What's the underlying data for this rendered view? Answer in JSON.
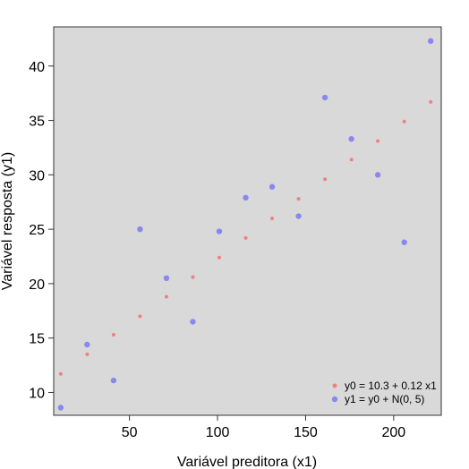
{
  "chart_data": {
    "type": "scatter",
    "xlabel": "Variável preditora (x1)",
    "ylabel": "Variável resposta (y1)",
    "xlim": [
      7,
      227
    ],
    "ylim": [
      7.9,
      43.6
    ],
    "xticks": [
      50,
      100,
      150,
      200
    ],
    "yticks": [
      10,
      15,
      20,
      25,
      30,
      35,
      40
    ],
    "background": "#d9d9d9",
    "grid": false,
    "legend_position": "bottom-right",
    "series": [
      {
        "name": "y0 = 10.3 + 0.12 x1",
        "color": "#f08080",
        "size": "small",
        "x": [
          11,
          26,
          41,
          56,
          71,
          86,
          101,
          116,
          131,
          146,
          161,
          176,
          191,
          206,
          221
        ],
        "y": [
          11.7,
          13.5,
          15.3,
          17.0,
          18.8,
          20.6,
          22.4,
          24.2,
          26.0,
          27.8,
          29.6,
          31.4,
          33.1,
          34.9,
          36.7
        ]
      },
      {
        "name": "y1 = y0 + N(0, 5)",
        "color": "#8888ee",
        "size": "large",
        "x": [
          11,
          26,
          41,
          56,
          71,
          86,
          101,
          116,
          131,
          146,
          161,
          176,
          191,
          206,
          221
        ],
        "y": [
          8.6,
          14.4,
          11.1,
          25.0,
          20.5,
          16.5,
          24.8,
          27.9,
          28.9,
          26.2,
          37.1,
          33.3,
          30.0,
          23.8,
          42.3
        ]
      }
    ]
  }
}
